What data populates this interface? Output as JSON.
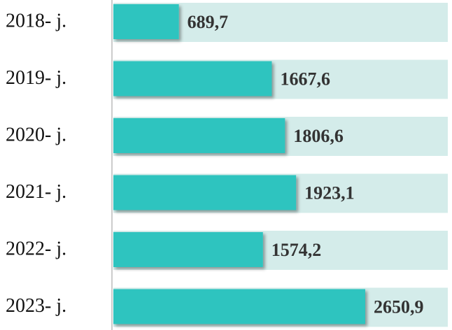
{
  "chart_data": {
    "type": "barh",
    "categories": [
      "2018- j.",
      "2019- j.",
      "2020- j.",
      "2021- j.",
      "2022- j.",
      "2023- j."
    ],
    "values": [
      689.7,
      1667.6,
      1806.6,
      1923.1,
      1574.2,
      2650.9
    ],
    "value_labels": [
      "689,7",
      "1667,6",
      "1806,6",
      "1923,1",
      "1574,2",
      "2650,9"
    ],
    "color": "#2ec4bf"
  }
}
